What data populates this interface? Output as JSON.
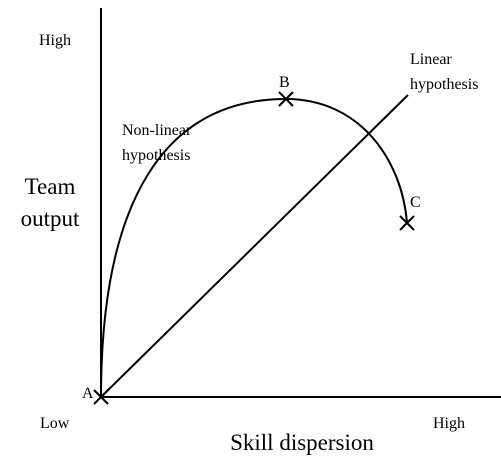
{
  "axes": {
    "y_label": [
      "Team",
      "output"
    ],
    "y_high": "High",
    "x_low": "Low",
    "x_high": "High",
    "x_label": "Skill dispersion"
  },
  "curves": {
    "nonlinear": [
      "Non-linear",
      "hypothesis"
    ],
    "linear": [
      "Linear",
      "hypothesis"
    ]
  },
  "points": {
    "a": "A",
    "b": "B",
    "c": "C"
  }
}
